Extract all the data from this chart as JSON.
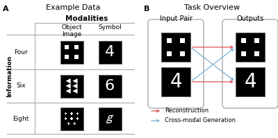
{
  "panel_a_label": "A",
  "panel_b_label": "B",
  "title_a": "Example Data",
  "title_b": "Task Overview",
  "modalities_label": "Modalities",
  "information_label": "Information",
  "col1_label": "Object\nImage",
  "col2_label": "Symbol",
  "row_labels": [
    "Four",
    "Six",
    "Eight"
  ],
  "input_pair_label": "Input Pair",
  "outputs_label": "Outputs",
  "legend_reconstruction": "Reconstruction",
  "legend_crossmodal": "Cross-modal Generation",
  "arrow_red": "#e05050",
  "arrow_blue": "#7ab0d4"
}
